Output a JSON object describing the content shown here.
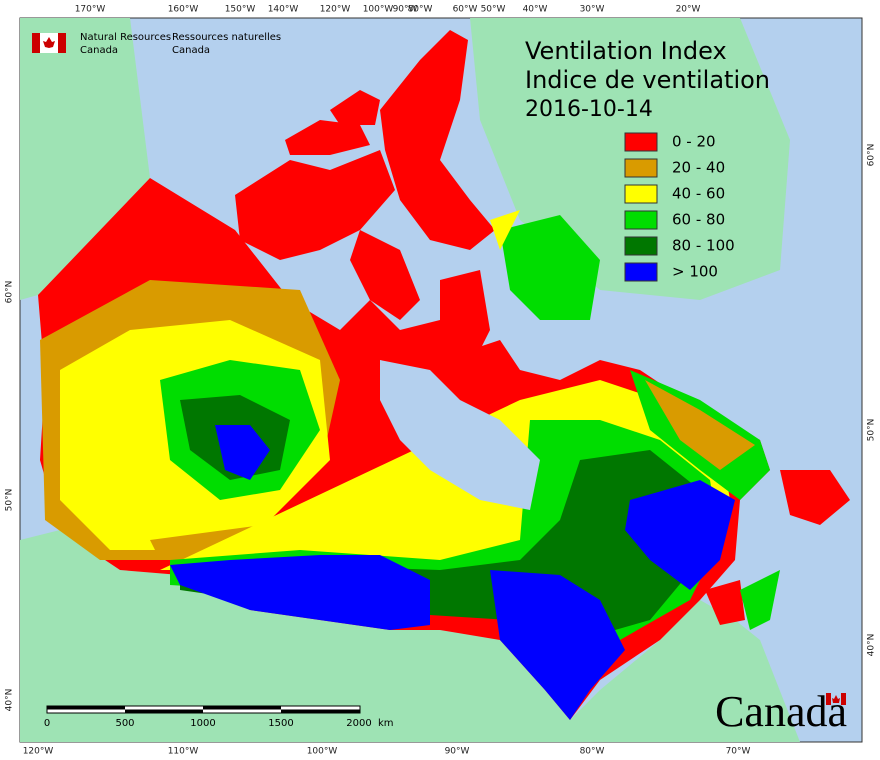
{
  "header": {
    "agency_en": [
      "Natural Resources",
      "Canada"
    ],
    "agency_fr": [
      "Ressources naturelles",
      "Canada"
    ]
  },
  "title": [
    "Ventilation Index",
    "Indice de ventilation"
  ],
  "date": "2016-10-14",
  "legend": [
    {
      "label": "0 - 20",
      "color": "#ff0000"
    },
    {
      "label": "20 - 40",
      "color": "#d99b00"
    },
    {
      "label": "40 - 60",
      "color": "#ffff00"
    },
    {
      "label": "60 - 80",
      "color": "#00dd00"
    },
    {
      "label": "80 - 100",
      "color": "#007700"
    },
    {
      "label": "> 100",
      "color": "#0000ff"
    }
  ],
  "graticule": {
    "top": [
      "170°W",
      "160°W",
      "150°W",
      "140°W",
      "120°W",
      "100°W",
      "90°W",
      "80°W",
      "60°W",
      "50°W",
      "40°W",
      "30°W",
      "20°W"
    ],
    "bottom": [
      "120°W",
      "110°W",
      "100°W",
      "90°W",
      "80°W",
      "70°W"
    ],
    "left": [
      "60°N",
      "50°N",
      "40°N"
    ],
    "right": [
      "60°N",
      "50°N",
      "40°N"
    ]
  },
  "scale_bar": {
    "labels": [
      "0",
      "500",
      "1000",
      "1500",
      "2000"
    ],
    "unit": "km"
  },
  "wordmark": "Canada"
}
